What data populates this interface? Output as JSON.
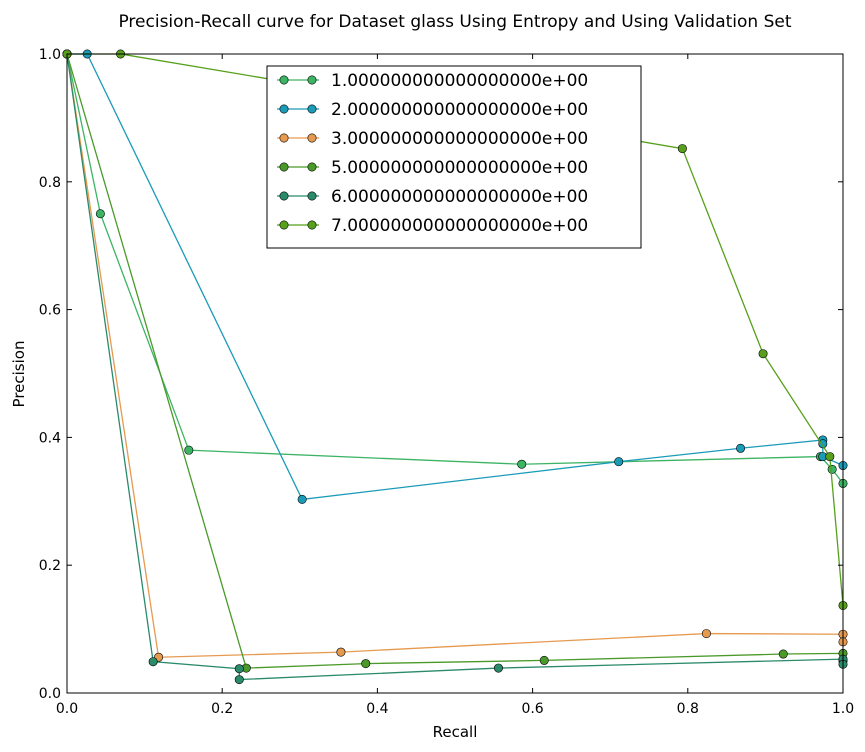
{
  "chart_data": {
    "type": "line",
    "title": "Precision-Recall curve for Dataset glass Using Entropy and Using Validation Set",
    "xlabel": "Recall",
    "ylabel": "Precision",
    "xlim": [
      0.0,
      1.0
    ],
    "ylim": [
      0.0,
      1.0
    ],
    "xticks": [
      "0.0",
      "0.2",
      "0.4",
      "0.6",
      "0.8",
      "1.0"
    ],
    "yticks": [
      "0.0",
      "0.2",
      "0.4",
      "0.6",
      "0.8",
      "1.0"
    ],
    "grid": false,
    "legend_position": "top-center",
    "series": [
      {
        "name": "1.000000000000000000e+00",
        "color": "#3cb464",
        "points": [
          [
            0.0,
            1.0
          ],
          [
            0.043,
            0.75
          ],
          [
            0.157,
            0.38
          ],
          [
            0.586,
            0.358
          ],
          [
            0.971,
            0.37
          ],
          [
            0.986,
            0.35
          ],
          [
            1.0,
            0.328
          ]
        ]
      },
      {
        "name": "2.000000000000000000e+00",
        "color": "#1a9bb8",
        "points": [
          [
            0.0,
            1.0
          ],
          [
            0.026,
            1.0
          ],
          [
            0.303,
            0.303
          ],
          [
            0.711,
            0.362
          ],
          [
            0.868,
            0.383
          ],
          [
            0.974,
            0.396
          ],
          [
            0.974,
            0.39
          ],
          [
            0.974,
            0.37
          ],
          [
            1.0,
            0.356
          ]
        ]
      },
      {
        "name": "3.000000000000000000e+00",
        "color": "#e69a50",
        "points": [
          [
            0.0,
            1.0
          ],
          [
            0.118,
            0.056
          ],
          [
            0.353,
            0.064
          ],
          [
            0.824,
            0.093
          ],
          [
            1.0,
            0.092
          ],
          [
            1.0,
            0.08
          ]
        ]
      },
      {
        "name": "5.000000000000000000e+00",
        "color": "#4a9a2a",
        "points": [
          [
            0.0,
            1.0
          ],
          [
            0.231,
            0.039
          ],
          [
            0.385,
            0.046
          ],
          [
            0.615,
            0.051
          ],
          [
            0.923,
            0.061
          ],
          [
            1.0,
            0.062
          ],
          [
            1.0,
            0.05
          ]
        ]
      },
      {
        "name": "6.000000000000000000e+00",
        "color": "#2a8a6a",
        "points": [
          [
            0.0,
            1.0
          ],
          [
            0.111,
            0.049
          ],
          [
            0.222,
            0.038
          ],
          [
            0.222,
            0.021
          ],
          [
            0.556,
            0.039
          ],
          [
            1.0,
            0.053
          ],
          [
            1.0,
            0.045
          ]
        ]
      },
      {
        "name": "7.000000000000000000e+00",
        "color": "#56a01c",
        "points": [
          [
            0.0,
            1.0
          ],
          [
            0.069,
            1.0
          ],
          [
            0.793,
            0.852
          ],
          [
            0.897,
            0.531
          ],
          [
            0.983,
            0.37
          ],
          [
            1.0,
            0.137
          ]
        ]
      }
    ]
  }
}
